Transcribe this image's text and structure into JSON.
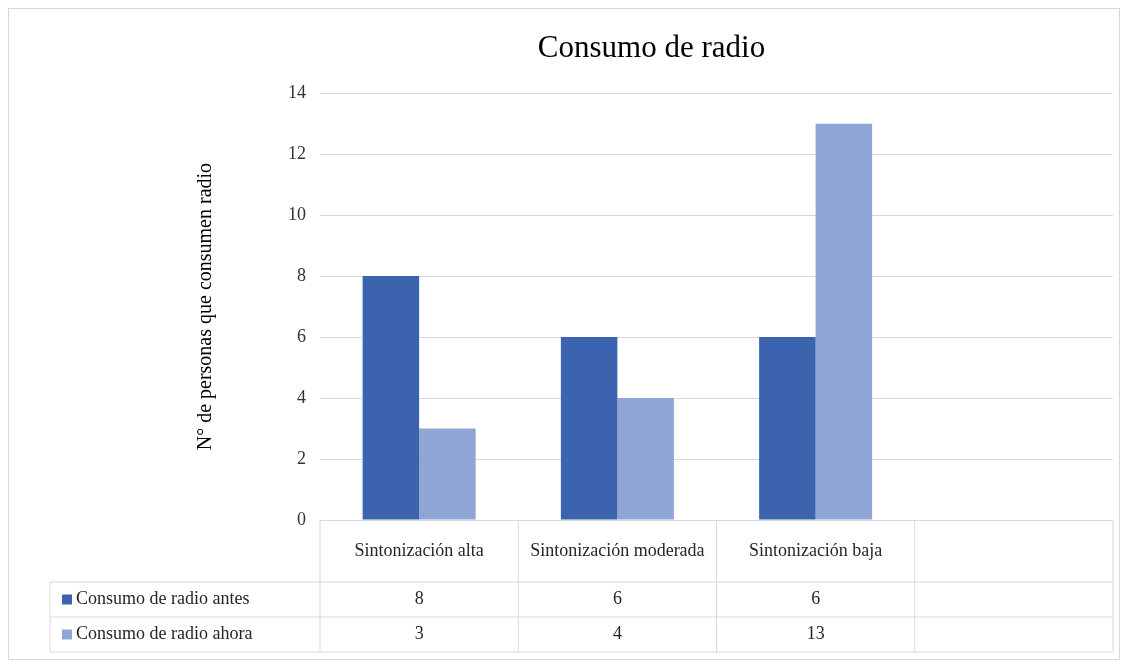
{
  "chart_data": {
    "type": "bar",
    "title": "Consumo de radio",
    "ylabel": "N° de personas que consumen radio",
    "categories": [
      "Sintonización alta",
      "Sintonización moderada",
      "Sintonización baja",
      null
    ],
    "series": [
      {
        "name": "Consumo de radio antes",
        "color": "#3c64ae",
        "values": [
          8,
          6,
          6,
          null
        ]
      },
      {
        "name": "Consumo de radio ahora",
        "color": "#8fa5d6",
        "values": [
          3,
          4,
          13,
          null
        ]
      }
    ],
    "ylim": [
      0,
      14
    ],
    "yticks": [
      0,
      2,
      4,
      6,
      8,
      10,
      12,
      14
    ],
    "grid": "y",
    "legend": "bottom",
    "data_labels": true
  }
}
